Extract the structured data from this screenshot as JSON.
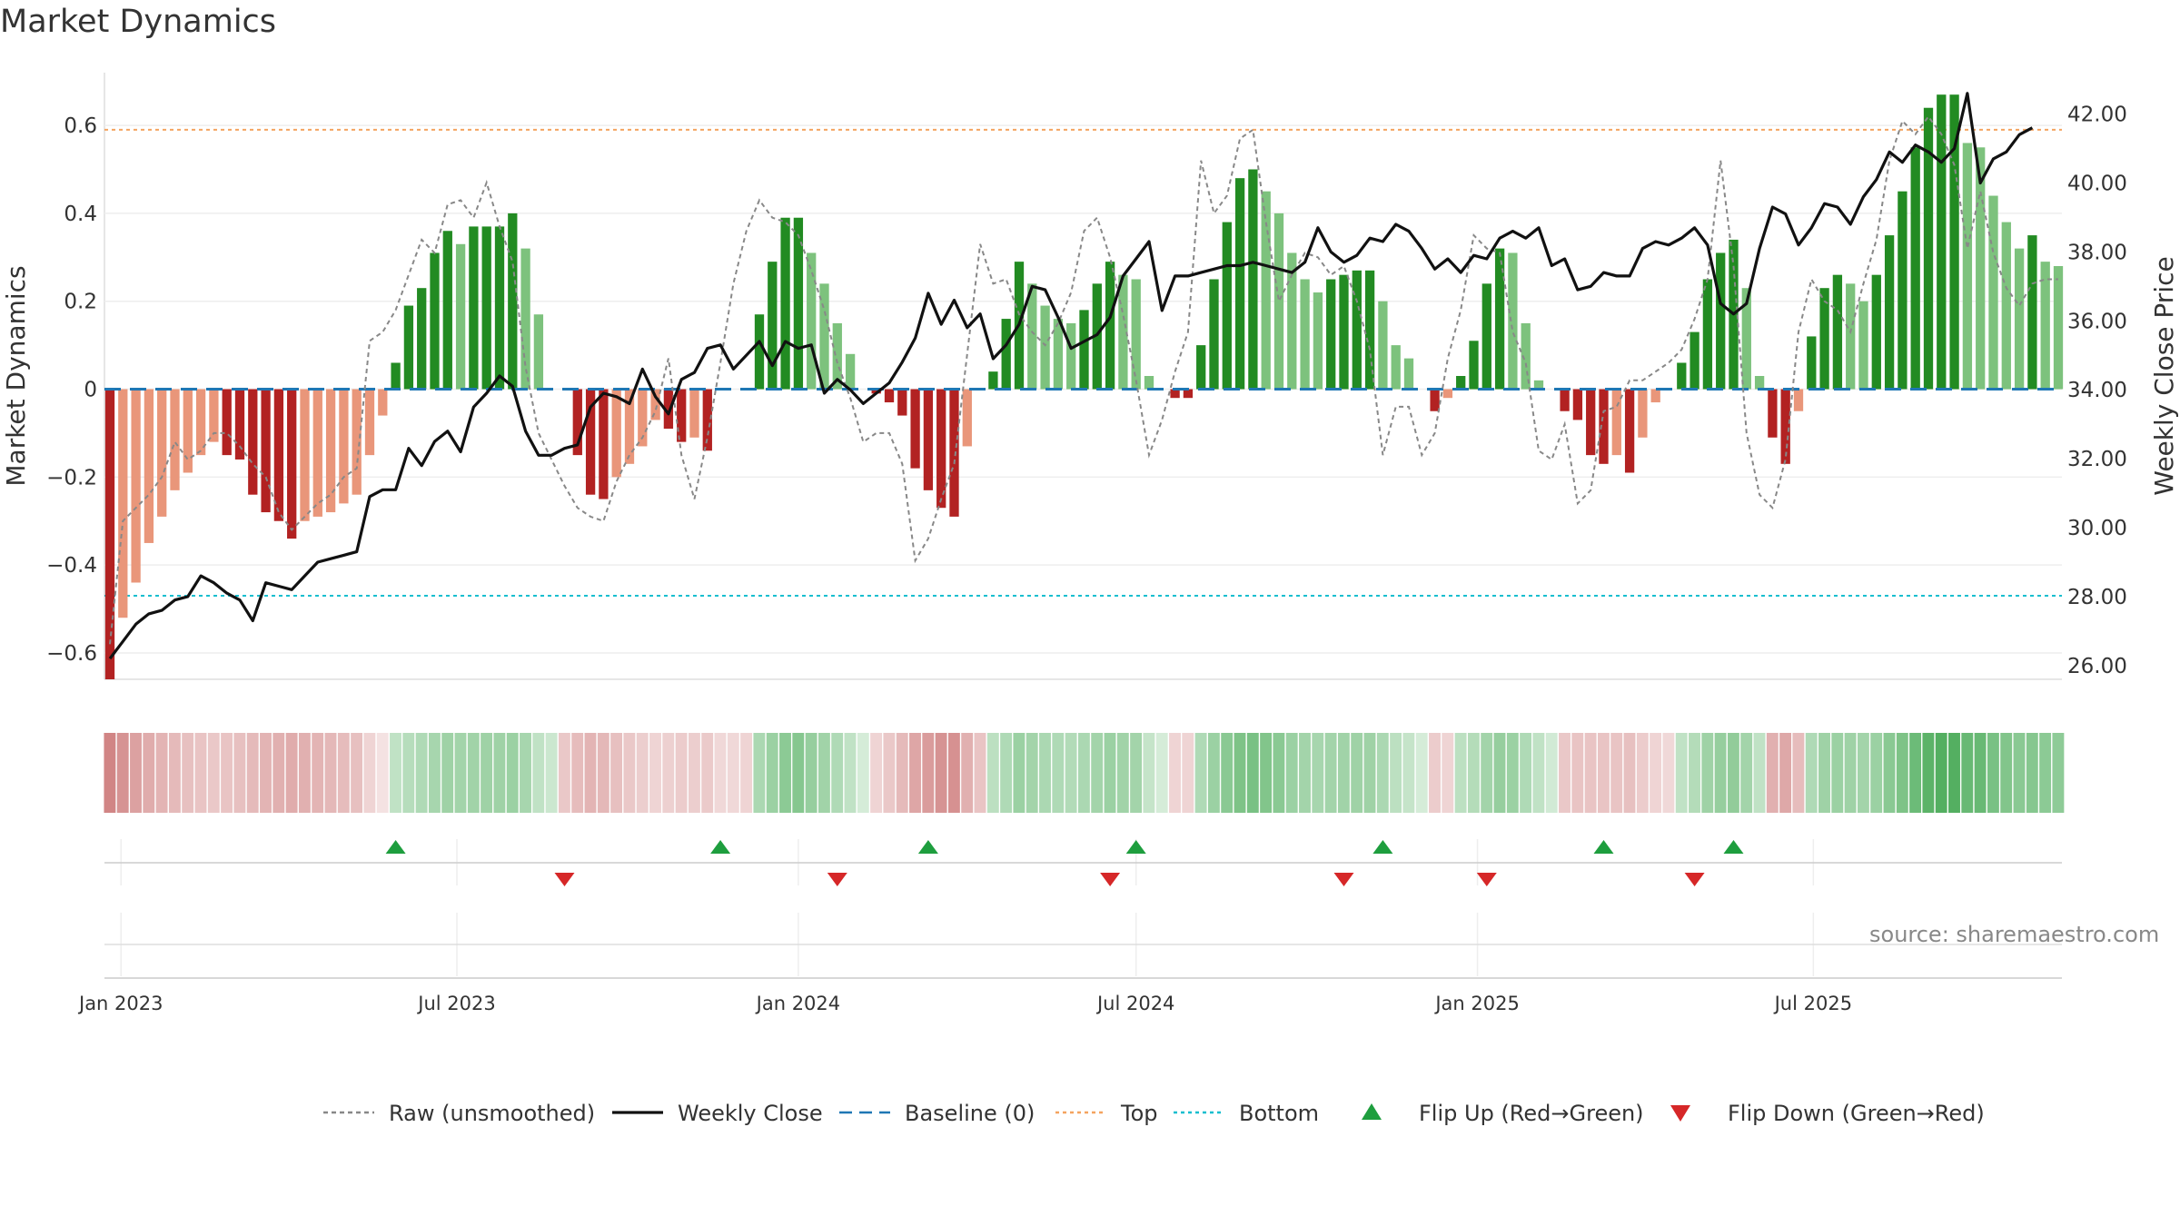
{
  "title": "Market Dynamics",
  "source": "source: sharemaestro.com",
  "colors": {
    "strong_red": "#b22222",
    "light_red": "#e9967a",
    "strong_green": "#228b22",
    "light_green": "#7dc27d",
    "raw": "#888888",
    "close": "#111111",
    "baseline": "#1f77b4",
    "top": "#f4a460",
    "bottom": "#17becf",
    "flip_up": "#1e9e3e",
    "flip_down": "#d62728"
  },
  "chart_data": {
    "type": "bar",
    "ylabel": "Market Dynamics",
    "y2label": "Weekly Close Price",
    "ylim": [
      -0.66,
      0.72
    ],
    "y2lim": [
      25.6,
      43.2
    ],
    "yticks": [
      -0.6,
      -0.4,
      -0.2,
      0,
      0.2,
      0.4,
      0.6
    ],
    "ytick_labels": [
      "−0.6",
      "−0.4",
      "−0.2",
      "0",
      "0.2",
      "0.4",
      "0.6"
    ],
    "y2ticks": [
      26,
      28,
      30,
      32,
      34,
      36,
      38,
      40,
      42
    ],
    "y2tick_labels": [
      "26.00",
      "28.00",
      "30.00",
      "32.00",
      "34.00",
      "36.00",
      "38.00",
      "40.00",
      "42.00"
    ],
    "xticks": [
      "2023-01-01",
      "2023-07-01",
      "2024-01-01",
      "2024-07-01",
      "2025-01-01",
      "2025-07-01"
    ],
    "xtick_labels": [
      "Jan 2023",
      "Jul 2023",
      "Jan 2024",
      "Jul 2024",
      "Jan 2025",
      "Jul 2025"
    ],
    "first_week": "2022-12-26",
    "top_line": 0.59,
    "bottom_line": -0.47,
    "baseline": 0,
    "bars": [
      -0.66,
      -0.52,
      -0.44,
      -0.35,
      -0.29,
      -0.23,
      -0.19,
      -0.15,
      -0.12,
      -0.15,
      -0.16,
      -0.24,
      -0.28,
      -0.3,
      -0.34,
      -0.3,
      -0.29,
      -0.28,
      -0.26,
      -0.24,
      -0.15,
      -0.06,
      0.06,
      0.19,
      0.23,
      0.31,
      0.36,
      0.33,
      0.37,
      0.37,
      0.37,
      0.4,
      0.32,
      0.17,
      0,
      0,
      -0.15,
      -0.24,
      -0.25,
      -0.2,
      -0.17,
      -0.13,
      -0.07,
      -0.09,
      -0.12,
      -0.11,
      -0.14,
      0,
      0,
      0,
      0.17,
      0.29,
      0.39,
      0.39,
      0.31,
      0.24,
      0.15,
      0.08,
      0,
      -0.01,
      -0.03,
      -0.06,
      -0.18,
      -0.23,
      -0.27,
      -0.29,
      -0.13,
      0,
      0.04,
      0.16,
      0.29,
      0.24,
      0.19,
      0.16,
      0.15,
      0.18,
      0.24,
      0.29,
      0.26,
      0.25,
      0.03,
      0,
      -0.02,
      -0.02,
      0.1,
      0.25,
      0.38,
      0.48,
      0.5,
      0.45,
      0.4,
      0.31,
      0.25,
      0.22,
      0.25,
      0.26,
      0.27,
      0.27,
      0.2,
      0.1,
      0.07,
      0,
      -0.05,
      -0.02,
      0.03,
      0.11,
      0.24,
      0.32,
      0.31,
      0.15,
      0.02,
      0,
      -0.05,
      -0.07,
      -0.15,
      -0.17,
      -0.15,
      -0.19,
      -0.11,
      -0.03,
      0,
      0.06,
      0.13,
      0.25,
      0.31,
      0.34,
      0.23,
      0.03,
      -0.11,
      -0.17,
      -0.05,
      0.12,
      0.23,
      0.26,
      0.24,
      0.2,
      0.26,
      0.35,
      0.45,
      0.55,
      0.64,
      0.67,
      0.67,
      0.56,
      0.55,
      0.44,
      0.38,
      0.32,
      0.35,
      0.29,
      0.28
    ],
    "raw": [
      -0.58,
      -0.3,
      -0.27,
      -0.24,
      -0.2,
      -0.12,
      -0.16,
      -0.14,
      -0.1,
      -0.1,
      -0.13,
      -0.17,
      -0.2,
      -0.28,
      -0.32,
      -0.29,
      -0.26,
      -0.24,
      -0.2,
      -0.18,
      0.11,
      0.13,
      0.18,
      0.26,
      0.34,
      0.31,
      0.42,
      0.43,
      0.39,
      0.47,
      0.37,
      0.29,
      0.05,
      -0.1,
      -0.16,
      -0.22,
      -0.27,
      -0.29,
      -0.3,
      -0.21,
      -0.15,
      -0.11,
      -0.05,
      0.07,
      -0.15,
      -0.25,
      -0.11,
      0.06,
      0.24,
      0.36,
      0.43,
      0.39,
      0.38,
      0.35,
      0.27,
      0.18,
      0.06,
      -0.02,
      -0.12,
      -0.1,
      -0.1,
      -0.17,
      -0.39,
      -0.34,
      -0.25,
      -0.17,
      0.08,
      0.33,
      0.24,
      0.25,
      0.17,
      0.13,
      0.1,
      0.15,
      0.22,
      0.36,
      0.39,
      0.3,
      0.17,
      0.02,
      -0.15,
      -0.07,
      0.04,
      0.13,
      0.52,
      0.4,
      0.44,
      0.57,
      0.59,
      0.38,
      0.2,
      0.26,
      0.31,
      0.3,
      0.26,
      0.28,
      0.2,
      0.09,
      -0.15,
      -0.04,
      -0.04,
      -0.15,
      -0.1,
      0.07,
      0.18,
      0.35,
      0.32,
      0.31,
      0.13,
      0.06,
      -0.14,
      -0.16,
      -0.08,
      -0.26,
      -0.23,
      -0.05,
      -0.04,
      0.02,
      0.02,
      0.04,
      0.06,
      0.09,
      0.16,
      0.25,
      0.52,
      0.28,
      -0.1,
      -0.24,
      -0.27,
      -0.16,
      0.13,
      0.25,
      0.2,
      0.18,
      0.13,
      0.24,
      0.34,
      0.52,
      0.61,
      0.58,
      0.62,
      0.58,
      0.51,
      0.32,
      0.45,
      0.31,
      0.23,
      0.19,
      0.24,
      0.25,
      0.25
    ]
  },
  "close": [
    26.2,
    26.7,
    27.2,
    27.5,
    27.6,
    27.9,
    28.0,
    28.6,
    28.4,
    28.1,
    27.9,
    27.3,
    28.4,
    28.3,
    28.2,
    28.6,
    29.0,
    29.1,
    29.2,
    29.3,
    30.9,
    31.1,
    31.1,
    32.3,
    31.8,
    32.5,
    32.8,
    32.2,
    33.5,
    33.9,
    34.4,
    34.1,
    32.8,
    32.1,
    32.1,
    32.3,
    32.4,
    33.5,
    33.9,
    33.8,
    33.6,
    34.6,
    33.8,
    33.3,
    34.3,
    34.5,
    35.2,
    35.3,
    34.6,
    35.0,
    35.4,
    34.7,
    35.4,
    35.2,
    35.3,
    33.9,
    34.3,
    34.0,
    33.6,
    33.9,
    34.2,
    34.8,
    35.5,
    36.8,
    35.9,
    36.6,
    35.8,
    36.2,
    34.9,
    35.3,
    35.9,
    37.0,
    36.9,
    36.1,
    35.2,
    35.4,
    35.6,
    36.1,
    37.3,
    37.8,
    38.3,
    36.3,
    37.3,
    37.3,
    37.4,
    37.5,
    37.6,
    37.6,
    37.7,
    37.6,
    37.5,
    37.4,
    37.7,
    38.7,
    38.0,
    37.7,
    37.9,
    38.4,
    38.3,
    38.8,
    38.6,
    38.1,
    37.5,
    37.8,
    37.4,
    37.9,
    37.8,
    38.4,
    38.6,
    38.4,
    38.7,
    37.6,
    37.8,
    36.9,
    37.0,
    37.4,
    37.3,
    37.3,
    38.1,
    38.3,
    38.2,
    38.4,
    38.7,
    38.2,
    36.5,
    36.2,
    36.5,
    38.1,
    39.3,
    39.1,
    38.2,
    38.7,
    39.4,
    39.3,
    38.8,
    39.6,
    40.1,
    40.9,
    40.6,
    41.1,
    40.9,
    40.6,
    41.0,
    42.6,
    40.0,
    40.7,
    40.9,
    41.4,
    41.6
  ],
  "strip": [
    0.62,
    0.55,
    0.48,
    0.42,
    0.38,
    0.35,
    0.32,
    0.3,
    0.28,
    0.3,
    0.32,
    0.35,
    0.38,
    0.4,
    0.42,
    0.4,
    0.38,
    0.36,
    0.34,
    0.32,
    0.22,
    0.15,
    0.3,
    0.35,
    0.38,
    0.42,
    0.46,
    0.44,
    0.45,
    0.46,
    0.46,
    0.48,
    0.42,
    0.3,
    0.25,
    0.28,
    0.34,
    0.38,
    0.36,
    0.32,
    0.28,
    0.25,
    0.22,
    0.24,
    0.26,
    0.25,
    0.27,
    0.2,
    0.2,
    0.22,
    0.4,
    0.48,
    0.55,
    0.58,
    0.5,
    0.45,
    0.38,
    0.3,
    0.2,
    0.22,
    0.28,
    0.35,
    0.45,
    0.5,
    0.55,
    0.56,
    0.4,
    0.3,
    0.32,
    0.38,
    0.48,
    0.44,
    0.4,
    0.38,
    0.37,
    0.4,
    0.44,
    0.48,
    0.45,
    0.44,
    0.28,
    0.2,
    0.22,
    0.22,
    0.38,
    0.48,
    0.56,
    0.62,
    0.64,
    0.6,
    0.56,
    0.48,
    0.44,
    0.42,
    0.44,
    0.45,
    0.46,
    0.46,
    0.4,
    0.32,
    0.28,
    0.2,
    0.26,
    0.22,
    0.32,
    0.36,
    0.44,
    0.5,
    0.48,
    0.38,
    0.3,
    0.22,
    0.28,
    0.3,
    0.3,
    0.3,
    0.3,
    0.32,
    0.26,
    0.22,
    0.2,
    0.3,
    0.36,
    0.46,
    0.5,
    0.52,
    0.44,
    0.3,
    0.4,
    0.44,
    0.34,
    0.38,
    0.46,
    0.48,
    0.46,
    0.44,
    0.48,
    0.56,
    0.62,
    0.7,
    0.78,
    0.82,
    0.82,
    0.72,
    0.72,
    0.64,
    0.6,
    0.56,
    0.58,
    0.55,
    0.54
  ],
  "flips_up": [
    22,
    47,
    63,
    79,
    98,
    115,
    125
  ],
  "flips_down": [
    35,
    56,
    77,
    95,
    106,
    122
  ],
  "legend": [
    {
      "label": "Raw (unsmoothed)",
      "kind": "dashed",
      "color": "#888888"
    },
    {
      "label": "Weekly Close",
      "kind": "solid",
      "color": "#111111"
    },
    {
      "label": "Baseline (0)",
      "kind": "dash",
      "color": "#1f77b4"
    },
    {
      "label": "Top",
      "kind": "dotted",
      "color": "#f4a460"
    },
    {
      "label": "Bottom",
      "kind": "dotted",
      "color": "#17becf"
    },
    {
      "label": "Flip Up (Red→Green)",
      "kind": "tri-up",
      "color": "#1e9e3e"
    },
    {
      "label": "Flip Down (Green→Red)",
      "kind": "tri-down",
      "color": "#d62728"
    }
  ]
}
